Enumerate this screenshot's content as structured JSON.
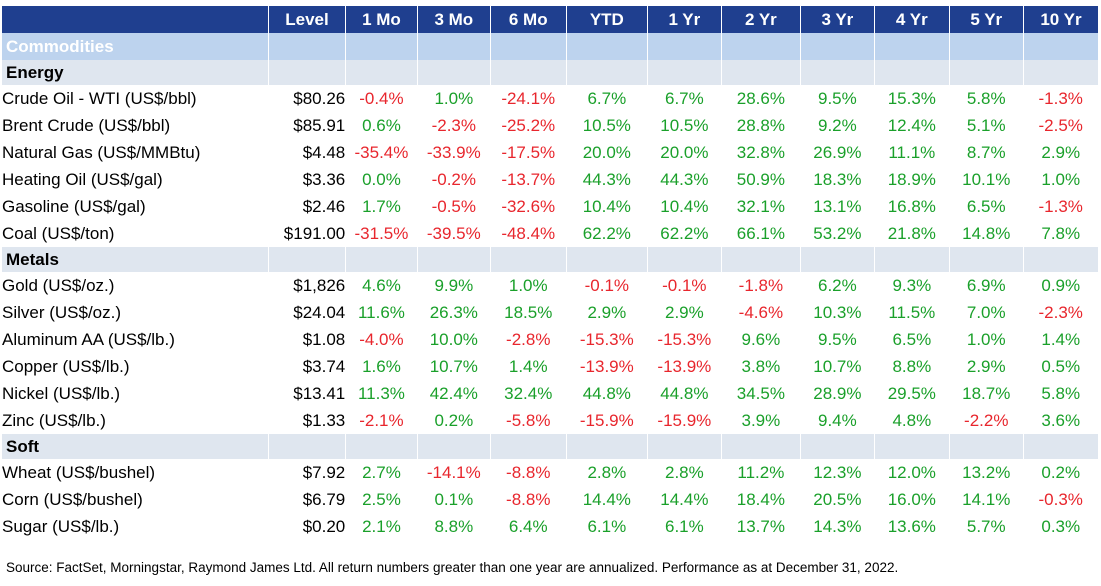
{
  "headers": [
    "",
    "Level",
    "1 Mo",
    "3 Mo",
    "6 Mo",
    "YTD",
    "1 Yr",
    "2 Yr",
    "3 Yr",
    "4 Yr",
    "5 Yr",
    "10 Yr"
  ],
  "band_title": "Commodities",
  "sections": [
    {
      "title": "Energy",
      "rows": [
        {
          "name": "Crude Oil - WTI (US$/bbl)",
          "level": "$80.26",
          "values": [
            "-0.4%",
            "1.0%",
            "-24.1%",
            "6.7%",
            "6.7%",
            "28.6%",
            "9.5%",
            "15.3%",
            "5.8%",
            "-1.3%"
          ]
        },
        {
          "name": "Brent Crude (US$/bbl)",
          "level": "$85.91",
          "values": [
            "0.6%",
            "-2.3%",
            "-25.2%",
            "10.5%",
            "10.5%",
            "28.8%",
            "9.2%",
            "12.4%",
            "5.1%",
            "-2.5%"
          ]
        },
        {
          "name": "Natural Gas (US$/MMBtu)",
          "level": "$4.48",
          "values": [
            "-35.4%",
            "-33.9%",
            "-17.5%",
            "20.0%",
            "20.0%",
            "32.8%",
            "26.9%",
            "11.1%",
            "8.7%",
            "2.9%"
          ]
        },
        {
          "name": "Heating Oil (US$/gal)",
          "level": "$3.36",
          "values": [
            "0.0%",
            "-0.2%",
            "-13.7%",
            "44.3%",
            "44.3%",
            "50.9%",
            "18.3%",
            "18.9%",
            "10.1%",
            "1.0%"
          ]
        },
        {
          "name": "Gasoline (US$/gal)",
          "level": "$2.46",
          "values": [
            "1.7%",
            "-0.5%",
            "-32.6%",
            "10.4%",
            "10.4%",
            "32.1%",
            "13.1%",
            "16.8%",
            "6.5%",
            "-1.3%"
          ]
        },
        {
          "name": "Coal (US$/ton)",
          "level": "$191.00",
          "values": [
            "-31.5%",
            "-39.5%",
            "-48.4%",
            "62.2%",
            "62.2%",
            "66.1%",
            "53.2%",
            "21.8%",
            "14.8%",
            "7.8%"
          ]
        }
      ]
    },
    {
      "title": "Metals",
      "rows": [
        {
          "name": "Gold (US$/oz.)",
          "level": "$1,826",
          "values": [
            "4.6%",
            "9.9%",
            "1.0%",
            "-0.1%",
            "-0.1%",
            "-1.8%",
            "6.2%",
            "9.3%",
            "6.9%",
            "0.9%"
          ]
        },
        {
          "name": "Silver (US$/oz.)",
          "level": "$24.04",
          "values": [
            "11.6%",
            "26.3%",
            "18.5%",
            "2.9%",
            "2.9%",
            "-4.6%",
            "10.3%",
            "11.5%",
            "7.0%",
            "-2.3%"
          ]
        },
        {
          "name": "Aluminum AA (US$/lb.)",
          "level": "$1.08",
          "values": [
            "-4.0%",
            "10.0%",
            "-2.8%",
            "-15.3%",
            "-15.3%",
            "9.6%",
            "9.5%",
            "6.5%",
            "1.0%",
            "1.4%"
          ]
        },
        {
          "name": "Copper (US$/lb.)",
          "level": "$3.74",
          "values": [
            "1.6%",
            "10.7%",
            "1.4%",
            "-13.9%",
            "-13.9%",
            "3.8%",
            "10.7%",
            "8.8%",
            "2.9%",
            "0.5%"
          ]
        },
        {
          "name": "Nickel (US$/lb.)",
          "level": "$13.41",
          "values": [
            "11.3%",
            "42.4%",
            "32.4%",
            "44.8%",
            "44.8%",
            "34.5%",
            "28.9%",
            "29.5%",
            "18.7%",
            "5.8%"
          ]
        },
        {
          "name": "Zinc (US$/lb.)",
          "level": "$1.33",
          "values": [
            "-2.1%",
            "0.2%",
            "-5.8%",
            "-15.9%",
            "-15.9%",
            "3.9%",
            "9.4%",
            "4.8%",
            "-2.2%",
            "3.6%"
          ]
        }
      ]
    },
    {
      "title": "Soft",
      "rows": [
        {
          "name": "Wheat (US$/bushel)",
          "level": "$7.92",
          "values": [
            "2.7%",
            "-14.1%",
            "-8.8%",
            "2.8%",
            "2.8%",
            "11.2%",
            "12.3%",
            "12.0%",
            "13.2%",
            "0.2%"
          ]
        },
        {
          "name": "Corn (US$/bushel)",
          "level": "$6.79",
          "values": [
            "2.5%",
            "0.1%",
            "-8.8%",
            "14.4%",
            "14.4%",
            "18.4%",
            "20.5%",
            "16.0%",
            "14.1%",
            "-0.3%"
          ]
        },
        {
          "name": "Sugar (US$/lb.)",
          "level": "$0.20",
          "values": [
            "2.1%",
            "8.8%",
            "6.4%",
            "6.1%",
            "6.1%",
            "13.7%",
            "14.3%",
            "13.6%",
            "5.7%",
            "0.3%"
          ]
        }
      ]
    }
  ],
  "source": "Source: FactSet, Morningstar, Raymond James Ltd. All return numbers greater than one year are annualized. Performance as at December 31, 2022.",
  "colors": {
    "header_bg": "#1f3f8f",
    "band_bg": "#bdd3ee",
    "section_bg": "#dfe6ef",
    "positive": "#1aa02a",
    "negative": "#e8262d"
  }
}
